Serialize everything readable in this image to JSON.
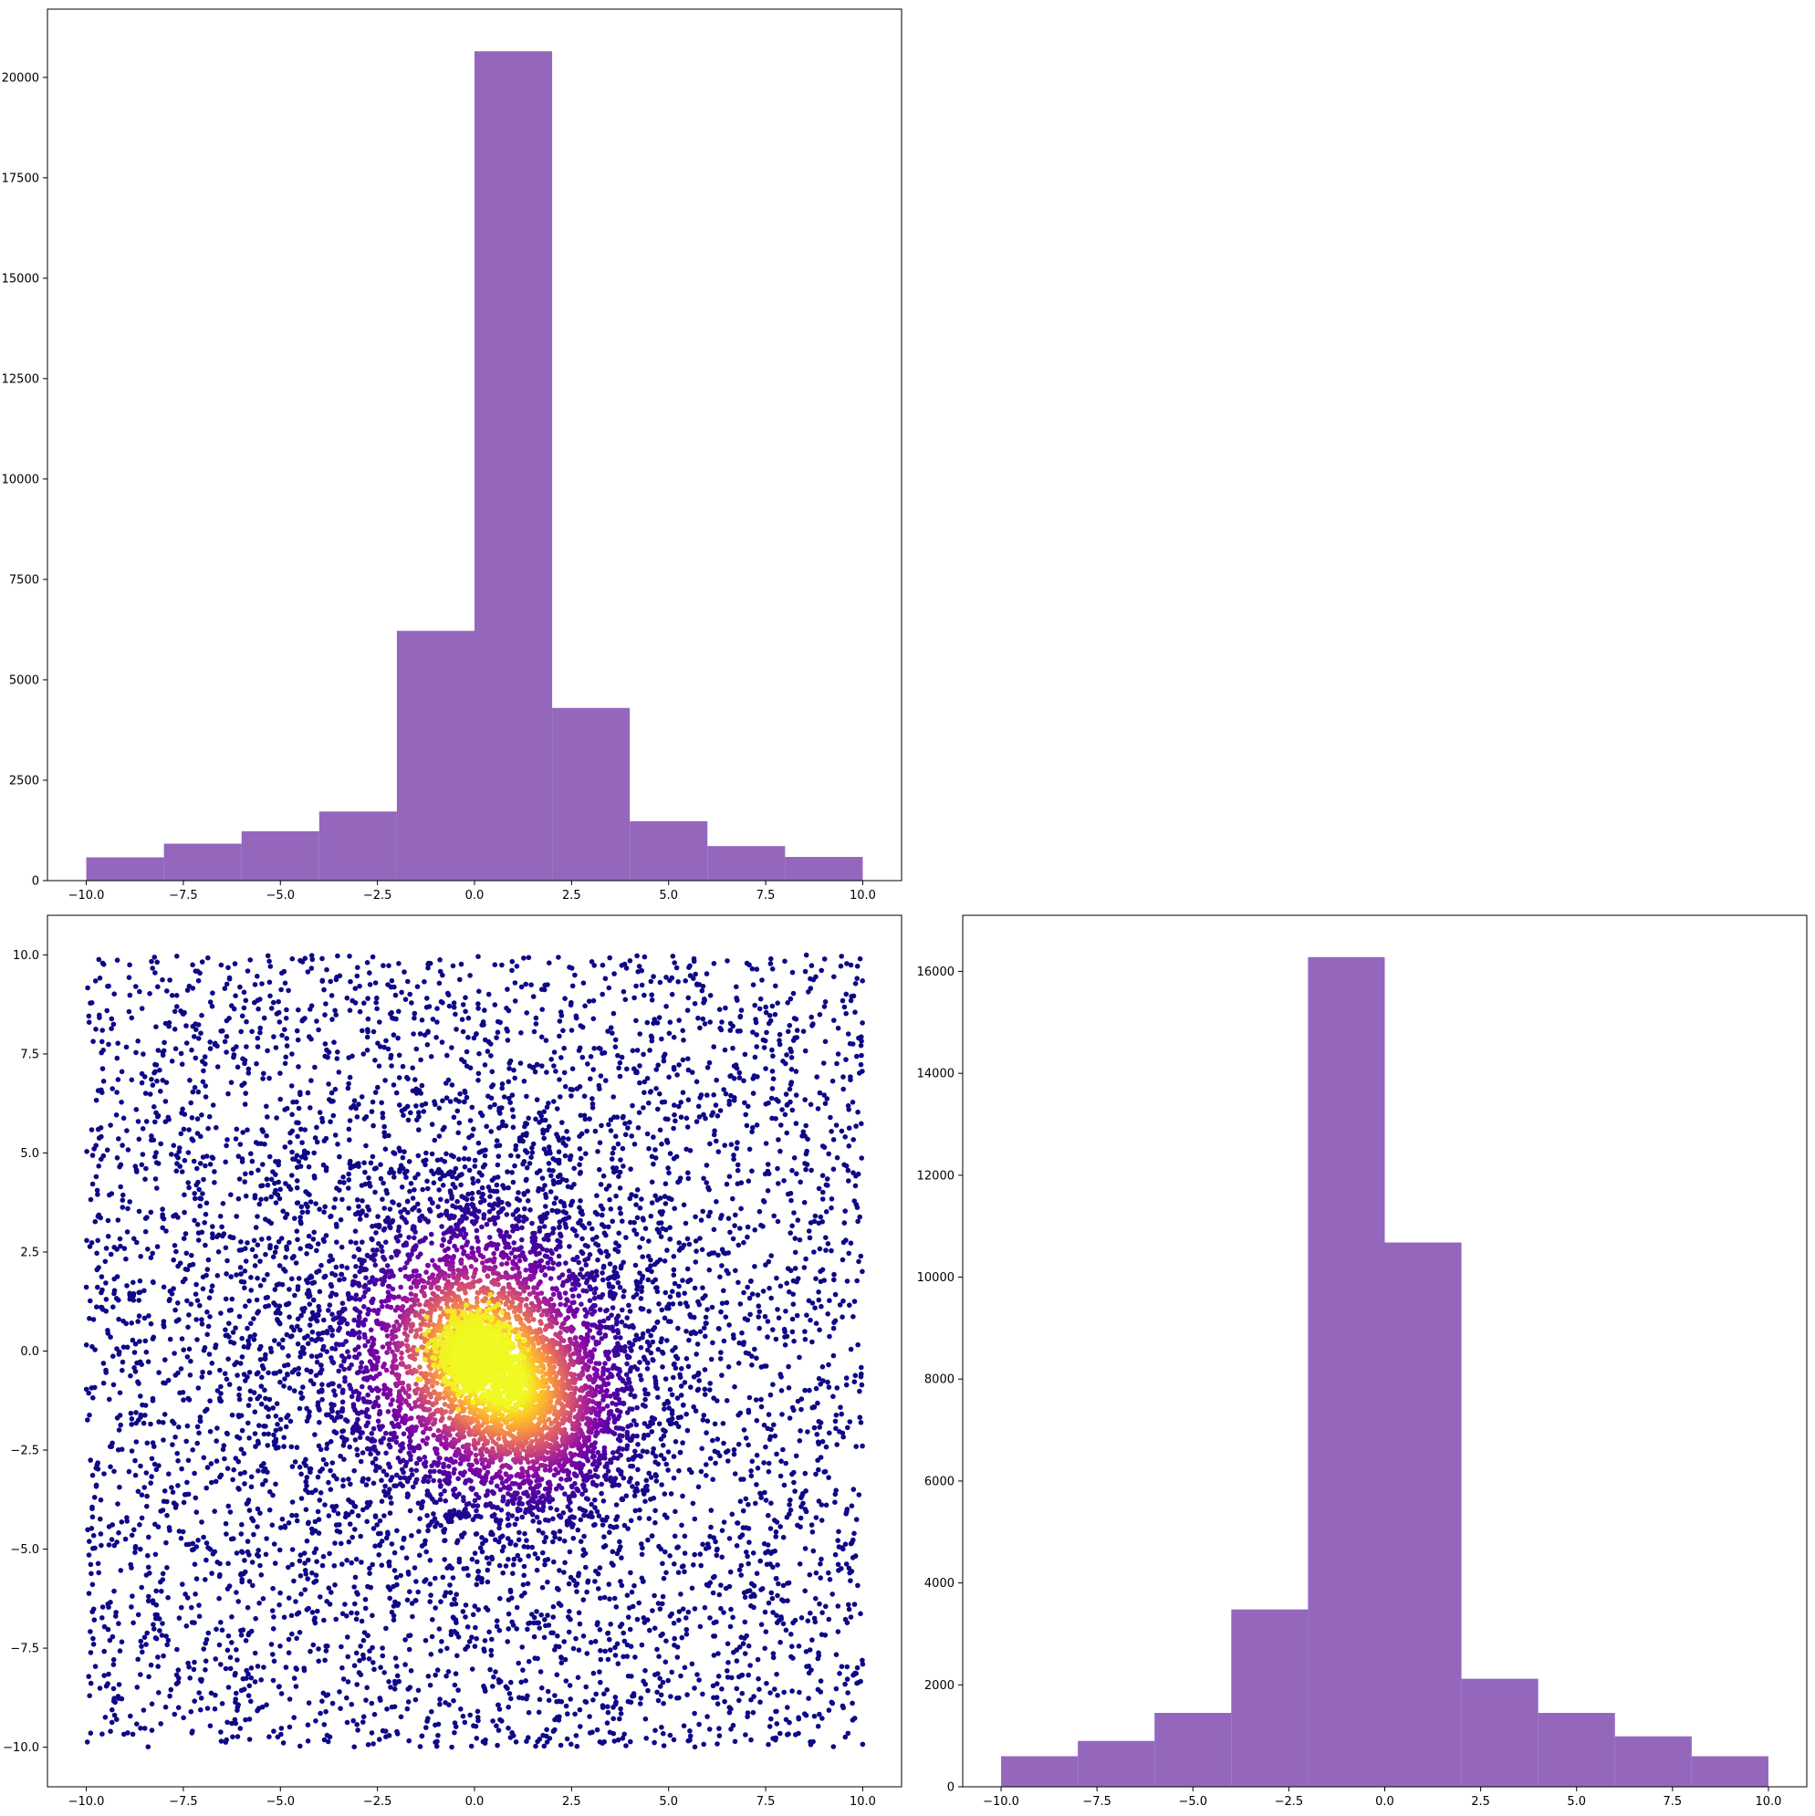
{
  "colors": {
    "bar": "#9467bd",
    "axes_edge": "#000000",
    "scatter_colormap": "plasma"
  },
  "chart_data": [
    {
      "id": "hist_x",
      "type": "bar",
      "title": "",
      "xlabel": "",
      "ylabel": "",
      "bin_edges": [
        -10,
        -8,
        -6,
        -4,
        -2,
        0,
        2,
        4,
        6,
        8,
        10
      ],
      "values": [
        580,
        920,
        1230,
        1720,
        6220,
        20650,
        4300,
        1480,
        860,
        590
      ],
      "xlim": [
        -11,
        11
      ],
      "ylim": [
        0,
        21700
      ],
      "xticks": [
        -10,
        -7.5,
        -5,
        -2.5,
        0,
        2.5,
        5,
        7.5,
        10
      ],
      "xtick_labels": [
        "−10.0",
        "−7.5",
        "−5.0",
        "−2.5",
        "0.0",
        "2.5",
        "5.0",
        "7.5",
        "10.0"
      ],
      "yticks": [
        0,
        2500,
        5000,
        7500,
        10000,
        12500,
        15000,
        17500,
        20000
      ],
      "ytick_labels": [
        "0",
        "2500",
        "5000",
        "7500",
        "10000",
        "12500",
        "15000",
        "17500",
        "20000"
      ],
      "grid": false
    },
    {
      "id": "scatter_xy",
      "type": "scatter",
      "title": "",
      "xlabel": "",
      "ylabel": "",
      "colormap": "plasma",
      "color_encoding": "local point density",
      "components": [
        {
          "name": "uniform background",
          "x_range": [
            -10,
            10
          ],
          "y_range": [
            -10,
            10
          ],
          "count_estimate": 5000
        },
        {
          "name": "dense core",
          "center": [
            0,
            0
          ],
          "spread": 1.5
        },
        {
          "name": "secondary lobe",
          "center": [
            1.5,
            -1.5
          ],
          "spread": 1.2
        }
      ],
      "xlim": [
        -11,
        11
      ],
      "ylim": [
        -11,
        11
      ],
      "xticks": [
        -10,
        -7.5,
        -5,
        -2.5,
        0,
        2.5,
        5,
        7.5,
        10
      ],
      "xtick_labels": [
        "−10.0",
        "−7.5",
        "−5.0",
        "−2.5",
        "0.0",
        "2.5",
        "5.0",
        "7.5",
        "10.0"
      ],
      "yticks": [
        -10,
        -7.5,
        -5,
        -2.5,
        0,
        2.5,
        5,
        7.5,
        10
      ],
      "ytick_labels": [
        "−10.0",
        "−7.5",
        "−5.0",
        "−2.5",
        "0.0",
        "2.5",
        "5.0",
        "7.5",
        "10.0"
      ],
      "grid": false
    },
    {
      "id": "hist_y",
      "type": "bar",
      "title": "",
      "xlabel": "",
      "ylabel": "",
      "bin_edges": [
        -10,
        -8,
        -6,
        -4,
        -2,
        0,
        2,
        4,
        6,
        8,
        10
      ],
      "values": [
        600,
        900,
        1450,
        3480,
        16280,
        10680,
        2120,
        1450,
        990,
        600
      ],
      "xlim": [
        -11,
        11
      ],
      "ylim": [
        0,
        17100
      ],
      "xticks": [
        -10,
        -7.5,
        -5,
        -2.5,
        0,
        2.5,
        5,
        7.5,
        10
      ],
      "xtick_labels": [
        "−10.0",
        "−7.5",
        "−5.0",
        "−2.5",
        "0.0",
        "2.5",
        "5.0",
        "7.5",
        "10.0"
      ],
      "yticks": [
        0,
        2000,
        4000,
        6000,
        8000,
        10000,
        12000,
        14000,
        16000
      ],
      "ytick_labels": [
        "0",
        "2000",
        "4000",
        "6000",
        "8000",
        "10000",
        "12000",
        "14000",
        "16000"
      ],
      "grid": false
    }
  ]
}
